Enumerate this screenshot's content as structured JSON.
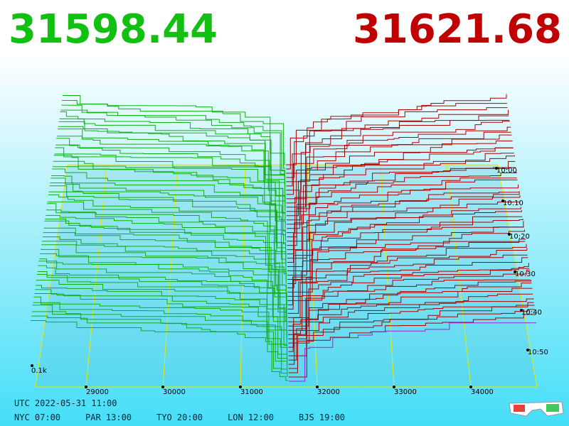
{
  "prices": {
    "bid": "31598.44",
    "ask": "31621.68"
  },
  "axis": {
    "price_ticks": [
      "29000",
      "30000",
      "31000",
      "32000",
      "33000",
      "34000"
    ],
    "time_ticks": [
      "10:00",
      "10:10",
      "10:20",
      "10:30",
      "10:40",
      "10:50"
    ],
    "depth_label": "0.1k"
  },
  "footer": {
    "utc": "UTC 2022-05-31 11:00",
    "cities": [
      "NYC 07:00",
      "PAR 13:00",
      "TYO 20:00",
      "LON 12:00",
      "BJS 19:00"
    ]
  }
}
